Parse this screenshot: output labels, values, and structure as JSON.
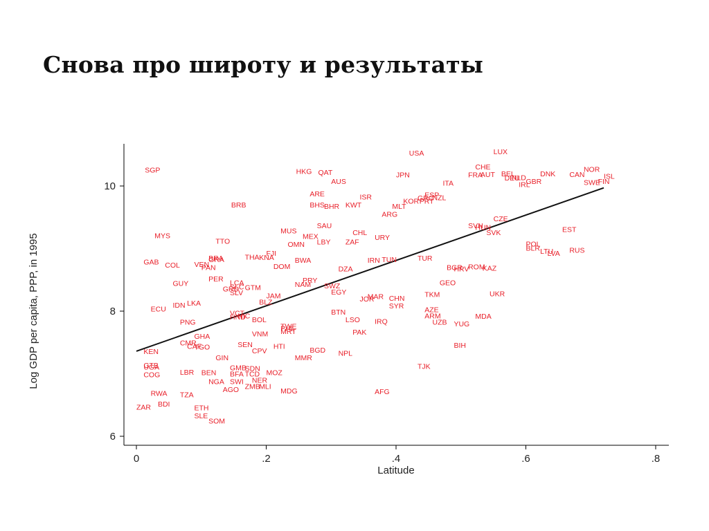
{
  "slide": {
    "title": "Снова про широту и результаты"
  },
  "colors": {
    "points": "#e8202a",
    "fit_line": "#111111",
    "axis": "#000000"
  },
  "chart_data": {
    "type": "scatter",
    "title": "",
    "xlabel": "Latitude",
    "ylabel": "Log GDP per capita, PPP, in 1995",
    "xlim": [
      0,
      0.8
    ],
    "ylim": [
      6,
      10.6
    ],
    "xticks": [
      0,
      0.2,
      0.4,
      0.6,
      0.8
    ],
    "xtick_labels": [
      "0",
      ".2",
      ".4",
      ".6",
      ".8"
    ],
    "yticks": [
      6,
      8,
      10
    ],
    "ytick_labels": [
      "6",
      "8",
      "10"
    ],
    "grid": false,
    "fit_line": {
      "x": [
        0,
        0.72
      ],
      "y": [
        7.36,
        9.97
      ]
    },
    "points": [
      {
        "label": "SGP",
        "x": 0.013,
        "y": 10.26
      },
      {
        "label": "USA",
        "x": 0.42,
        "y": 10.53
      },
      {
        "label": "LUX",
        "x": 0.55,
        "y": 10.55
      },
      {
        "label": "HKG",
        "x": 0.246,
        "y": 10.24
      },
      {
        "label": "QAT",
        "x": 0.28,
        "y": 10.22
      },
      {
        "label": "AUS",
        "x": 0.3,
        "y": 10.08
      },
      {
        "label": "JPN",
        "x": 0.4,
        "y": 10.18
      },
      {
        "label": "CHE",
        "x": 0.522,
        "y": 10.31
      },
      {
        "label": "FRA",
        "x": 0.511,
        "y": 10.18
      },
      {
        "label": "AUT",
        "x": 0.53,
        "y": 10.19
      },
      {
        "label": "BEL",
        "x": 0.562,
        "y": 10.2
      },
      {
        "label": "DEU",
        "x": 0.567,
        "y": 10.13
      },
      {
        "label": "NLD",
        "x": 0.578,
        "y": 10.14
      },
      {
        "label": "DNK",
        "x": 0.622,
        "y": 10.2
      },
      {
        "label": "CAN",
        "x": 0.667,
        "y": 10.19
      },
      {
        "label": "NOR",
        "x": 0.689,
        "y": 10.27
      },
      {
        "label": "SWE",
        "x": 0.689,
        "y": 10.06
      },
      {
        "label": "ISL",
        "x": 0.72,
        "y": 10.16
      },
      {
        "label": "FIN",
        "x": 0.711,
        "y": 10.08
      },
      {
        "label": "GBR",
        "x": 0.6,
        "y": 10.08
      },
      {
        "label": "IRL",
        "x": 0.589,
        "y": 10.03
      },
      {
        "label": "ITA",
        "x": 0.472,
        "y": 10.05
      },
      {
        "label": "ARE",
        "x": 0.267,
        "y": 9.88
      },
      {
        "label": "ISR",
        "x": 0.344,
        "y": 9.83
      },
      {
        "label": "ESP",
        "x": 0.444,
        "y": 9.86
      },
      {
        "label": "GRC",
        "x": 0.433,
        "y": 9.81
      },
      {
        "label": "PRT",
        "x": 0.436,
        "y": 9.76
      },
      {
        "label": "NZL",
        "x": 0.456,
        "y": 9.82
      },
      {
        "label": "KOR",
        "x": 0.411,
        "y": 9.76
      },
      {
        "label": "MLT",
        "x": 0.394,
        "y": 9.68
      },
      {
        "label": "ARG",
        "x": 0.378,
        "y": 9.55
      },
      {
        "label": "BRB",
        "x": 0.146,
        "y": 9.7
      },
      {
        "label": "BHS",
        "x": 0.267,
        "y": 9.7
      },
      {
        "label": "BHR",
        "x": 0.289,
        "y": 9.68
      },
      {
        "label": "KWT",
        "x": 0.322,
        "y": 9.7
      },
      {
        "label": "SAU",
        "x": 0.278,
        "y": 9.37
      },
      {
        "label": "SVN",
        "x": 0.511,
        "y": 9.37
      },
      {
        "label": "HUN",
        "x": 0.522,
        "y": 9.34
      },
      {
        "label": "CZE",
        "x": 0.55,
        "y": 9.48
      },
      {
        "label": "SVK",
        "x": 0.539,
        "y": 9.26
      },
      {
        "label": "EST",
        "x": 0.656,
        "y": 9.31
      },
      {
        "label": "MYS",
        "x": 0.028,
        "y": 9.21
      },
      {
        "label": "MUS",
        "x": 0.222,
        "y": 9.29
      },
      {
        "label": "CHL",
        "x": 0.333,
        "y": 9.26
      },
      {
        "label": "MEX",
        "x": 0.256,
        "y": 9.2
      },
      {
        "label": "URY",
        "x": 0.367,
        "y": 9.18
      },
      {
        "label": "TTO",
        "x": 0.122,
        "y": 9.12
      },
      {
        "label": "LBY",
        "x": 0.278,
        "y": 9.11
      },
      {
        "label": "ZAF",
        "x": 0.322,
        "y": 9.11
      },
      {
        "label": "OMN",
        "x": 0.233,
        "y": 9.07
      },
      {
        "label": "POL",
        "x": 0.6,
        "y": 9.08
      },
      {
        "label": "BLR",
        "x": 0.6,
        "y": 9.01
      },
      {
        "label": "LTU",
        "x": 0.622,
        "y": 8.96
      },
      {
        "label": "LVA",
        "x": 0.633,
        "y": 8.93
      },
      {
        "label": "RUS",
        "x": 0.667,
        "y": 8.98
      },
      {
        "label": "FJI",
        "x": 0.2,
        "y": 8.93
      },
      {
        "label": "THA",
        "x": 0.167,
        "y": 8.87
      },
      {
        "label": "KNA",
        "x": 0.189,
        "y": 8.86
      },
      {
        "label": "BRA",
        "x": 0.111,
        "y": 8.85
      },
      {
        "label": "GRA",
        "x": 0.111,
        "y": 8.83
      },
      {
        "label": "GAB",
        "x": 0.011,
        "y": 8.79
      },
      {
        "label": "COL",
        "x": 0.044,
        "y": 8.74
      },
      {
        "label": "VEN",
        "x": 0.089,
        "y": 8.75
      },
      {
        "label": "PAN",
        "x": 0.1,
        "y": 8.7
      },
      {
        "label": "DOM",
        "x": 0.211,
        "y": 8.72
      },
      {
        "label": "BWA",
        "x": 0.244,
        "y": 8.82
      },
      {
        "label": "DZA",
        "x": 0.311,
        "y": 8.68
      },
      {
        "label": "IRN",
        "x": 0.356,
        "y": 8.82
      },
      {
        "label": "TUN",
        "x": 0.378,
        "y": 8.83
      },
      {
        "label": "TUR",
        "x": 0.433,
        "y": 8.85
      },
      {
        "label": "BGR",
        "x": 0.478,
        "y": 8.7
      },
      {
        "label": "HRV",
        "x": 0.489,
        "y": 8.68
      },
      {
        "label": "ROM",
        "x": 0.511,
        "y": 8.71
      },
      {
        "label": "KAZ",
        "x": 0.533,
        "y": 8.69
      },
      {
        "label": "PER",
        "x": 0.111,
        "y": 8.52
      },
      {
        "label": "GUY",
        "x": 0.056,
        "y": 8.45
      },
      {
        "label": "PRY",
        "x": 0.256,
        "y": 8.5
      },
      {
        "label": "NAM",
        "x": 0.244,
        "y": 8.43
      },
      {
        "label": "LCA",
        "x": 0.144,
        "y": 8.46
      },
      {
        "label": "GRD",
        "x": 0.133,
        "y": 8.36
      },
      {
        "label": "SLC",
        "x": 0.144,
        "y": 8.39
      },
      {
        "label": "GTM",
        "x": 0.167,
        "y": 8.38
      },
      {
        "label": "SLV",
        "x": 0.144,
        "y": 8.3
      },
      {
        "label": "GEO",
        "x": 0.467,
        "y": 8.46
      },
      {
        "label": "SWZ",
        "x": 0.289,
        "y": 8.41
      },
      {
        "label": "EGY",
        "x": 0.3,
        "y": 8.31
      },
      {
        "label": "TKM",
        "x": 0.444,
        "y": 8.27
      },
      {
        "label": "UKR",
        "x": 0.544,
        "y": 8.28
      },
      {
        "label": "JAM",
        "x": 0.2,
        "y": 8.25
      },
      {
        "label": "MAR",
        "x": 0.356,
        "y": 8.24
      },
      {
        "label": "JOR",
        "x": 0.344,
        "y": 8.2
      },
      {
        "label": "CHN",
        "x": 0.389,
        "y": 8.21
      },
      {
        "label": "SYR",
        "x": 0.389,
        "y": 8.09
      },
      {
        "label": "BLZ",
        "x": 0.189,
        "y": 8.15
      },
      {
        "label": "LKA",
        "x": 0.078,
        "y": 8.13
      },
      {
        "label": "IDN",
        "x": 0.056,
        "y": 8.1
      },
      {
        "label": "ECU",
        "x": 0.022,
        "y": 8.04
      },
      {
        "label": "AZE",
        "x": 0.444,
        "y": 8.03
      },
      {
        "label": "BTN",
        "x": 0.3,
        "y": 7.99
      },
      {
        "label": "VCT",
        "x": 0.144,
        "y": 7.97
      },
      {
        "label": "HND",
        "x": 0.144,
        "y": 7.91
      },
      {
        "label": "NIC",
        "x": 0.156,
        "y": 7.93
      },
      {
        "label": "BOL",
        "x": 0.178,
        "y": 7.87
      },
      {
        "label": "ARM",
        "x": 0.444,
        "y": 7.93
      },
      {
        "label": "MDA",
        "x": 0.522,
        "y": 7.92
      },
      {
        "label": "LSO",
        "x": 0.322,
        "y": 7.87
      },
      {
        "label": "IRQ",
        "x": 0.367,
        "y": 7.84
      },
      {
        "label": "UZB",
        "x": 0.456,
        "y": 7.83
      },
      {
        "label": "YUG",
        "x": 0.489,
        "y": 7.8
      },
      {
        "label": "PNG",
        "x": 0.067,
        "y": 7.83
      },
      {
        "label": "TWE",
        "x": 0.222,
        "y": 7.76
      },
      {
        "label": "PHL",
        "x": 0.222,
        "y": 7.73
      },
      {
        "label": "MRT",
        "x": 0.222,
        "y": 7.68
      },
      {
        "label": "PAK",
        "x": 0.333,
        "y": 7.67
      },
      {
        "label": "VNM",
        "x": 0.178,
        "y": 7.64
      },
      {
        "label": "GHA",
        "x": 0.089,
        "y": 7.6
      },
      {
        "label": "CMR",
        "x": 0.067,
        "y": 7.5
      },
      {
        "label": "CAF",
        "x": 0.078,
        "y": 7.44
      },
      {
        "label": "TGO",
        "x": 0.089,
        "y": 7.43
      },
      {
        "label": "SEN",
        "x": 0.156,
        "y": 7.47
      },
      {
        "label": "HTI",
        "x": 0.211,
        "y": 7.44
      },
      {
        "label": "BIH",
        "x": 0.489,
        "y": 7.46
      },
      {
        "label": "CPV",
        "x": 0.178,
        "y": 7.37
      },
      {
        "label": "BGD",
        "x": 0.267,
        "y": 7.38
      },
      {
        "label": "NPL",
        "x": 0.311,
        "y": 7.33
      },
      {
        "label": "KEN",
        "x": 0.011,
        "y": 7.36
      },
      {
        "label": "GIN",
        "x": 0.122,
        "y": 7.26
      },
      {
        "label": "MMR",
        "x": 0.244,
        "y": 7.26
      },
      {
        "label": "TJK",
        "x": 0.433,
        "y": 7.12
      },
      {
        "label": "GTB",
        "x": 0.011,
        "y": 7.14
      },
      {
        "label": "UGA",
        "x": 0.011,
        "y": 7.11
      },
      {
        "label": "COG",
        "x": 0.011,
        "y": 6.99
      },
      {
        "label": "GMB",
        "x": 0.144,
        "y": 7.1
      },
      {
        "label": "SDN",
        "x": 0.167,
        "y": 7.09
      },
      {
        "label": "LBR",
        "x": 0.067,
        "y": 7.03
      },
      {
        "label": "BEN",
        "x": 0.1,
        "y": 7.02
      },
      {
        "label": "BFA",
        "x": 0.144,
        "y": 7.0
      },
      {
        "label": "TCD",
        "x": 0.167,
        "y": 7.0
      },
      {
        "label": "MOZ",
        "x": 0.2,
        "y": 7.02
      },
      {
        "label": "NGA",
        "x": 0.111,
        "y": 6.88
      },
      {
        "label": "SWI",
        "x": 0.144,
        "y": 6.88
      },
      {
        "label": "NER",
        "x": 0.178,
        "y": 6.9
      },
      {
        "label": "ZMB",
        "x": 0.167,
        "y": 6.8
      },
      {
        "label": "MLI",
        "x": 0.189,
        "y": 6.8
      },
      {
        "label": "AGO",
        "x": 0.133,
        "y": 6.75
      },
      {
        "label": "MDG",
        "x": 0.222,
        "y": 6.73
      },
      {
        "label": "AFG",
        "x": 0.367,
        "y": 6.72
      },
      {
        "label": "RWA",
        "x": 0.022,
        "y": 6.69
      },
      {
        "label": "TZA",
        "x": 0.067,
        "y": 6.67
      },
      {
        "label": "ZAR",
        "x": 0.0,
        "y": 6.47
      },
      {
        "label": "BDI",
        "x": 0.033,
        "y": 6.52
      },
      {
        "label": "ETH",
        "x": 0.089,
        "y": 6.46
      },
      {
        "label": "SLE",
        "x": 0.089,
        "y": 6.33
      },
      {
        "label": "SOM",
        "x": 0.111,
        "y": 6.25
      }
    ]
  }
}
